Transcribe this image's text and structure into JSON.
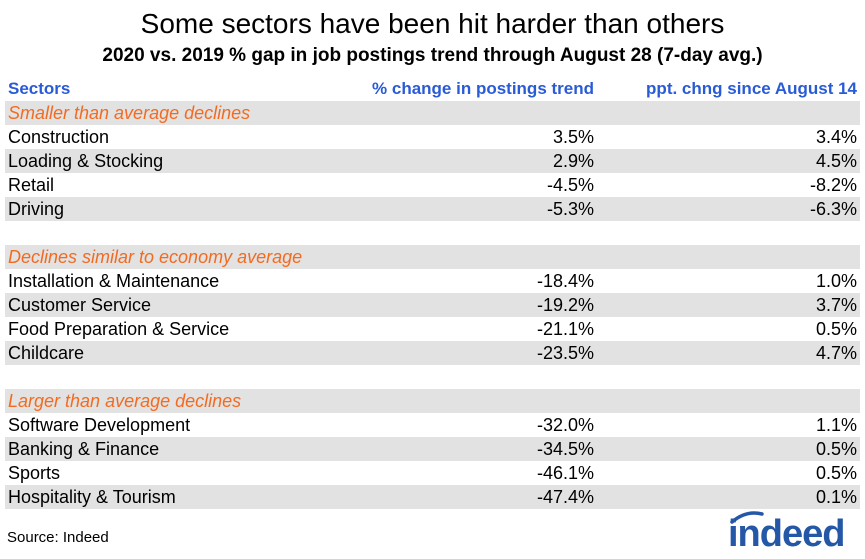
{
  "title": "Some sectors have been hit harder than others",
  "subtitle": "2020 vs. 2019 % gap in job postings trend through August 28 (7-day avg.)",
  "source": "Source: Indeed",
  "logo_text": "indeed",
  "colors": {
    "header": "#2a5bd7",
    "group": "#f26b21",
    "shade": "#e2e2e2",
    "logo": "#2557a7"
  },
  "chart_data": {
    "type": "table",
    "title": "Some sectors have been hit harder than others",
    "subtitle": "2020 vs. 2019 % gap in job postings trend through August 28 (7-day avg.)",
    "columns": [
      "Sectors",
      "% change in postings trend",
      "ppt. chng since August 14"
    ],
    "groups": [
      {
        "label": "Smaller than average declines",
        "rows": [
          [
            "Construction",
            "3.5%",
            "3.4%"
          ],
          [
            "Loading & Stocking",
            "2.9%",
            "4.5%"
          ],
          [
            "Retail",
            "-4.5%",
            "-8.2%"
          ],
          [
            "Driving",
            "-5.3%",
            "-6.3%"
          ]
        ]
      },
      {
        "label": "Declines similar to economy average",
        "rows": [
          [
            "Installation & Maintenance",
            "-18.4%",
            "1.0%"
          ],
          [
            "Customer Service",
            "-19.2%",
            "3.7%"
          ],
          [
            "Food Preparation & Service",
            "-21.1%",
            "0.5%"
          ],
          [
            "Childcare",
            "-23.5%",
            "4.7%"
          ]
        ]
      },
      {
        "label": "Larger than average declines",
        "rows": [
          [
            "Software Development",
            "-32.0%",
            "1.1%"
          ],
          [
            "Banking & Finance",
            "-34.5%",
            "0.5%"
          ],
          [
            "Sports",
            "-46.1%",
            "0.5%"
          ],
          [
            "Hospitality & Tourism",
            "-47.4%",
            "0.1%"
          ]
        ]
      }
    ]
  }
}
